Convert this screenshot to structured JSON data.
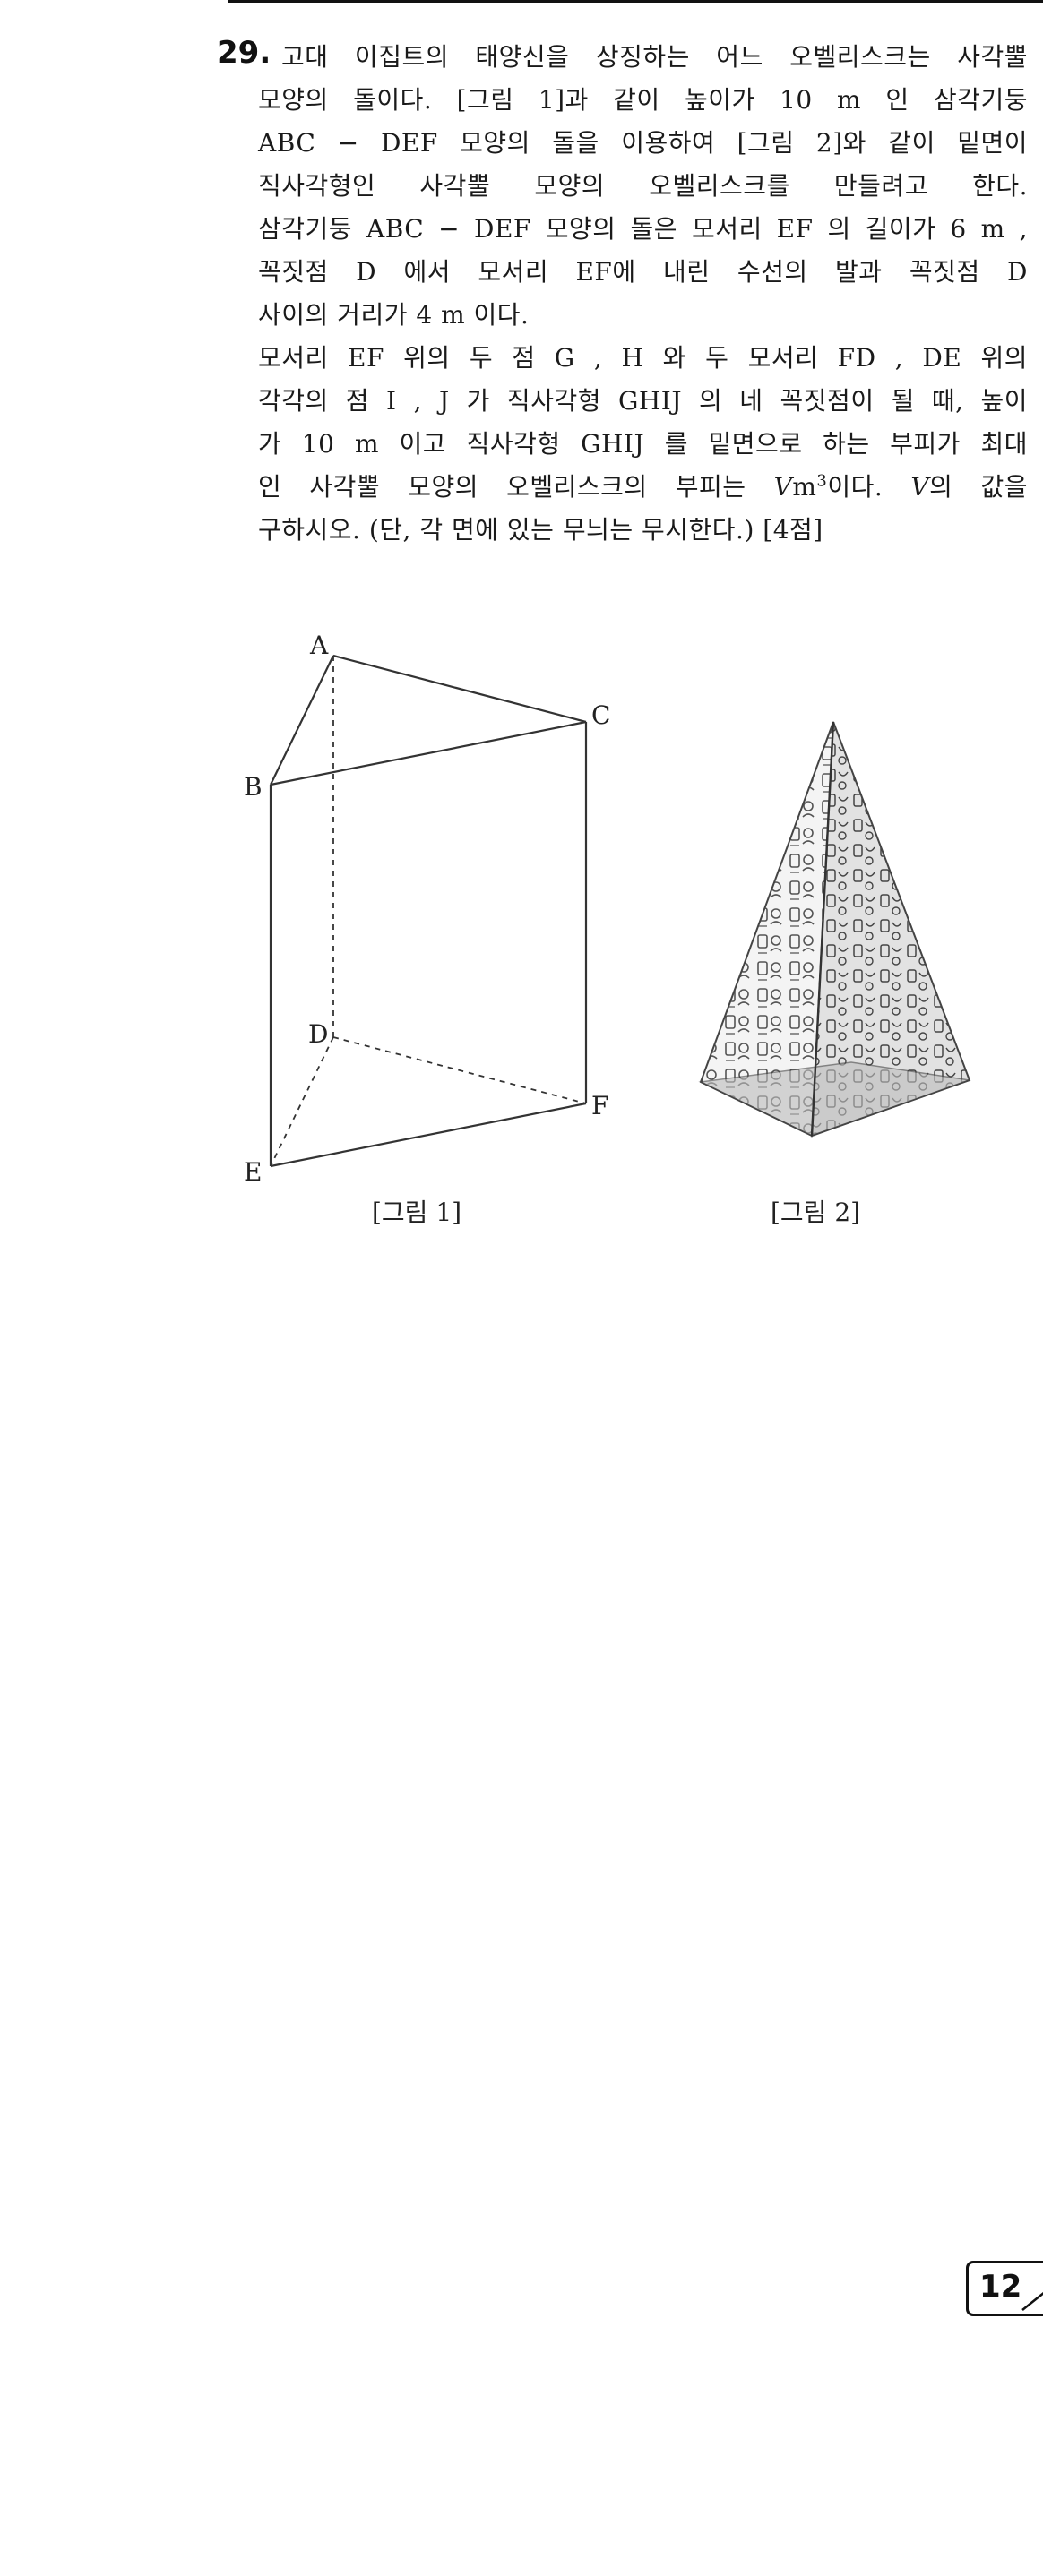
{
  "problem": {
    "number": "29.",
    "lines_p1": [
      "고대 이집트의 태양신을 상징하는 어느 오벨리스크는 사각뿔",
      "모양의 돌이다. [그림 1]과 같이 높이가 10 m 인 삼각기둥",
      "ABC − DEF 모양의 돌을 이용하여 [그림 2]와 같이 밑면이",
      "직사각형인 사각뿔 모양의 오벨리스크를 만들려고 한다."
    ],
    "lines_p2": [
      "삼각기둥 ABC − DEF 모양의 돌은 모서리 EF 의 길이가 6 m ,",
      "꼭짓점 D 에서 모서리 EF에 내린 수선의 발과 꼭짓점 D",
      "사이의 거리가 4 m 이다."
    ],
    "lines_p3": [
      "모서리 EF 위의 두 점 G , H 와 두 모서리 FD , DE 위의",
      "각각의 점 I , J 가 직사각형 GHIJ 의 네 꼭짓점이 될 때, 높이",
      "가 10 m 이고  직사각형 GHIJ 를 밑면으로 하는 부피가 최대"
    ],
    "line_p3_4_a": "인 사각뿔 모양의 오벨리스크의 부피는 ",
    "line_p3_4_v": "V",
    "line_p3_4_m": "m",
    "line_p3_4_exp": "3",
    "line_p3_4_b": "이다. ",
    "line_p3_4_v2": "V",
    "line_p3_4_c": "의 값을",
    "line_p3_5": "구하시오. (단, 각 면에 있는 무늬는 무시한다.) [4점]"
  },
  "figure1": {
    "labels": {
      "A": "A",
      "B": "B",
      "C": "C",
      "D": "D",
      "E": "E",
      "F": "F"
    },
    "caption": "[그림 1]"
  },
  "figure2": {
    "caption": "[그림 2]"
  },
  "page": {
    "number": "12"
  }
}
